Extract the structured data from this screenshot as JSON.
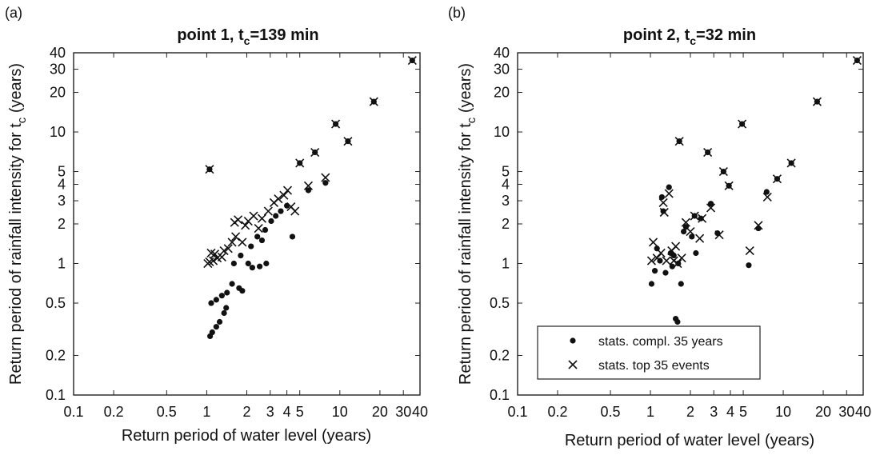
{
  "chart_data": [
    {
      "panel": "(a)",
      "title_main": "point 1, t",
      "title_sub": "c",
      "title_rest": "=139 min",
      "type": "scatter",
      "xlabel": "Return period of water level (years)",
      "ylabel_main": "Return period of rainfall intensity for t",
      "ylabel_sub": "c",
      "ylabel_rest": " (years)",
      "xscale": "log",
      "yscale": "log",
      "xlim": [
        0.1,
        40
      ],
      "ylim": [
        0.1,
        40
      ],
      "xticks": [
        0.1,
        0.2,
        0.5,
        1,
        2,
        3,
        4,
        5,
        10,
        20,
        30,
        40
      ],
      "xtick_labels": [
        "0.1",
        "0.2",
        "0.5",
        "1",
        "2",
        "3",
        "4",
        "5",
        "10",
        "20",
        "30",
        "40"
      ],
      "yticks": [
        0.1,
        0.2,
        0.5,
        1,
        2,
        3,
        4,
        5,
        10,
        20,
        30,
        40
      ],
      "ytick_labels": [
        "0.1",
        "0.2",
        "0.5",
        "1",
        "2",
        "3",
        "4",
        "5",
        "10",
        "20",
        "30",
        "40"
      ],
      "series": [
        {
          "marker": "dot",
          "points": [
            [
              1.06,
              0.28
            ],
            [
              1.1,
              0.3
            ],
            [
              1.18,
              0.33
            ],
            [
              1.25,
              0.36
            ],
            [
              1.35,
              0.42
            ],
            [
              1.4,
              0.46
            ],
            [
              1.08,
              0.5
            ],
            [
              1.18,
              0.53
            ],
            [
              1.3,
              0.57
            ],
            [
              1.42,
              0.6
            ],
            [
              1.55,
              0.7
            ],
            [
              1.75,
              0.65
            ],
            [
              1.85,
              0.62
            ],
            [
              1.6,
              1.0
            ],
            [
              1.8,
              1.15
            ],
            [
              2.05,
              1.0
            ],
            [
              2.2,
              0.93
            ],
            [
              2.5,
              0.95
            ],
            [
              2.8,
              1.0
            ],
            [
              2.15,
              1.35
            ],
            [
              2.4,
              1.6
            ],
            [
              2.6,
              1.5
            ],
            [
              2.75,
              1.8
            ],
            [
              3.05,
              2.1
            ],
            [
              3.3,
              2.3
            ],
            [
              3.6,
              2.5
            ],
            [
              4.0,
              2.75
            ],
            [
              4.4,
              1.6
            ],
            [
              1.05,
              5.2
            ],
            [
              5.0,
              5.8
            ],
            [
              5.8,
              3.6
            ],
            [
              6.5,
              7.0
            ],
            [
              7.8,
              4.1
            ],
            [
              9.3,
              11.5
            ],
            [
              11.5,
              8.5
            ],
            [
              18.0,
              17.0
            ],
            [
              35.0,
              35.0
            ]
          ]
        },
        {
          "marker": "cross",
          "points": [
            [
              1.02,
              1.0
            ],
            [
              1.05,
              1.03
            ],
            [
              1.12,
              1.05
            ],
            [
              1.2,
              1.1
            ],
            [
              1.3,
              1.12
            ],
            [
              1.08,
              1.2
            ],
            [
              1.15,
              1.18
            ],
            [
              1.35,
              1.25
            ],
            [
              1.45,
              1.3
            ],
            [
              1.55,
              1.45
            ],
            [
              1.65,
              1.6
            ],
            [
              1.85,
              1.45
            ],
            [
              1.62,
              2.05
            ],
            [
              1.72,
              2.15
            ],
            [
              1.95,
              1.95
            ],
            [
              2.05,
              2.1
            ],
            [
              2.25,
              2.3
            ],
            [
              2.45,
              1.85
            ],
            [
              2.6,
              2.2
            ],
            [
              2.9,
              2.5
            ],
            [
              3.2,
              2.9
            ],
            [
              3.45,
              3.1
            ],
            [
              3.8,
              3.3
            ],
            [
              4.05,
              3.6
            ],
            [
              4.3,
              2.7
            ],
            [
              4.6,
              2.5
            ],
            [
              1.05,
              5.2
            ],
            [
              5.0,
              5.8
            ],
            [
              5.8,
              3.9
            ],
            [
              6.5,
              7.0
            ],
            [
              7.8,
              4.5
            ],
            [
              9.3,
              11.5
            ],
            [
              11.5,
              8.5
            ],
            [
              18.0,
              17.0
            ],
            [
              35.0,
              35.0
            ]
          ]
        }
      ]
    },
    {
      "panel": "(b)",
      "title_main": "point 2, t",
      "title_sub": "c",
      "title_rest": "=32 min",
      "type": "scatter",
      "xlabel": "Return period of water level (years)",
      "ylabel_main": "Return period of rainfall intensity for t",
      "ylabel_sub": "c",
      "ylabel_rest": " (years)",
      "xscale": "log",
      "yscale": "log",
      "xlim": [
        0.1,
        40
      ],
      "ylim": [
        0.1,
        40
      ],
      "xticks": [
        0.1,
        0.2,
        0.5,
        1,
        2,
        3,
        4,
        5,
        10,
        20,
        30,
        40
      ],
      "xtick_labels": [
        "0.1",
        "0.2",
        "0.5",
        "1",
        "2",
        "3",
        "4",
        "5",
        "10",
        "20",
        "30",
        "40"
      ],
      "yticks": [
        0.1,
        0.2,
        0.5,
        1,
        2,
        3,
        4,
        5,
        10,
        20,
        30,
        40
      ],
      "ytick_labels": [
        "0.1",
        "0.2",
        "0.5",
        "1",
        "2",
        "3",
        "4",
        "5",
        "10",
        "20",
        "30",
        "40"
      ],
      "legend": {
        "position": "lower-left",
        "entries": [
          "stats. compl. 35 years",
          "stats. top 35 events"
        ]
      },
      "series": [
        {
          "marker": "dot",
          "name": "stats. compl. 35 years",
          "points": [
            [
              1.02,
              0.7
            ],
            [
              1.08,
              0.88
            ],
            [
              1.12,
              1.3
            ],
            [
              1.18,
              1.05
            ],
            [
              1.22,
              3.2
            ],
            [
              1.25,
              2.5
            ],
            [
              1.3,
              0.85
            ],
            [
              1.38,
              3.8
            ],
            [
              1.42,
              1.2
            ],
            [
              1.46,
              0.95
            ],
            [
              1.5,
              1.15
            ],
            [
              1.55,
              0.38
            ],
            [
              1.6,
              0.36
            ],
            [
              1.62,
              1.0
            ],
            [
              1.65,
              8.5
            ],
            [
              1.7,
              0.7
            ],
            [
              1.78,
              1.75
            ],
            [
              1.85,
              1.9
            ],
            [
              2.05,
              1.6
            ],
            [
              2.15,
              2.3
            ],
            [
              2.2,
              1.2
            ],
            [
              2.4,
              2.2
            ],
            [
              2.7,
              7.0
            ],
            [
              2.85,
              2.85
            ],
            [
              3.2,
              1.7
            ],
            [
              3.55,
              5.0
            ],
            [
              3.9,
              3.9
            ],
            [
              4.9,
              11.5
            ],
            [
              5.5,
              0.97
            ],
            [
              6.5,
              1.85
            ],
            [
              7.5,
              3.5
            ],
            [
              9.0,
              4.4
            ],
            [
              11.5,
              5.8
            ],
            [
              18.0,
              17.0
            ],
            [
              36.0,
              35.0
            ]
          ]
        },
        {
          "marker": "cross",
          "name": "stats. top 35 events",
          "points": [
            [
              1.02,
              1.05
            ],
            [
              1.05,
              1.45
            ],
            [
              1.12,
              1.1
            ],
            [
              1.2,
              1.2
            ],
            [
              1.25,
              2.9
            ],
            [
              1.27,
              2.45
            ],
            [
              1.32,
              1.05
            ],
            [
              1.38,
              3.4
            ],
            [
              1.45,
              1.25
            ],
            [
              1.5,
              1.05
            ],
            [
              1.55,
              1.35
            ],
            [
              1.6,
              1.0
            ],
            [
              1.65,
              8.5
            ],
            [
              1.72,
              1.1
            ],
            [
              1.85,
              2.05
            ],
            [
              2.0,
              1.75
            ],
            [
              2.15,
              2.3
            ],
            [
              2.35,
              1.55
            ],
            [
              2.45,
              2.2
            ],
            [
              2.7,
              7.0
            ],
            [
              2.85,
              2.65
            ],
            [
              3.3,
              1.65
            ],
            [
              3.55,
              5.0
            ],
            [
              3.9,
              3.9
            ],
            [
              4.9,
              11.5
            ],
            [
              5.6,
              1.25
            ],
            [
              6.5,
              1.95
            ],
            [
              7.6,
              3.2
            ],
            [
              9.0,
              4.4
            ],
            [
              11.5,
              5.8
            ],
            [
              18.0,
              17.0
            ],
            [
              36.0,
              35.0
            ]
          ]
        }
      ]
    }
  ]
}
